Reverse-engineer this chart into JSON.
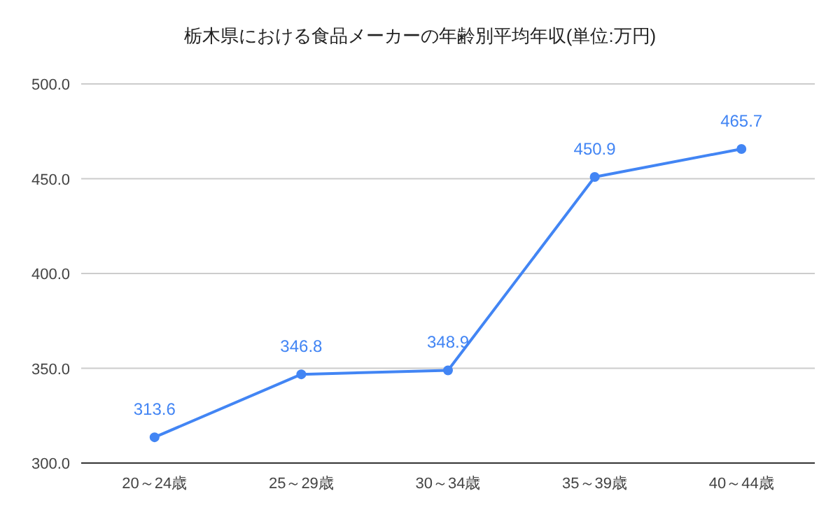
{
  "chart_data": {
    "type": "line",
    "title": "栃木県における食品メーカーの年齢別平均年収(単位:万円)",
    "categories": [
      "20～24歳",
      "25～29歳",
      "30～34歳",
      "35～39歳",
      "40～44歳"
    ],
    "series": [
      {
        "color": "#4285f4",
        "values": [
          313.6,
          346.8,
          348.9,
          450.9,
          465.7
        ]
      }
    ],
    "ylim": [
      300,
      500
    ],
    "yticks": [
      {
        "value": 300,
        "label": "300.0"
      },
      {
        "value": 350,
        "label": "350.0"
      },
      {
        "value": 400,
        "label": "400.0"
      },
      {
        "value": 450,
        "label": "450.0"
      },
      {
        "value": 500,
        "label": "500.0"
      }
    ],
    "grid": "y",
    "marker": "circle",
    "line_style": "solid",
    "data_labels": true
  }
}
